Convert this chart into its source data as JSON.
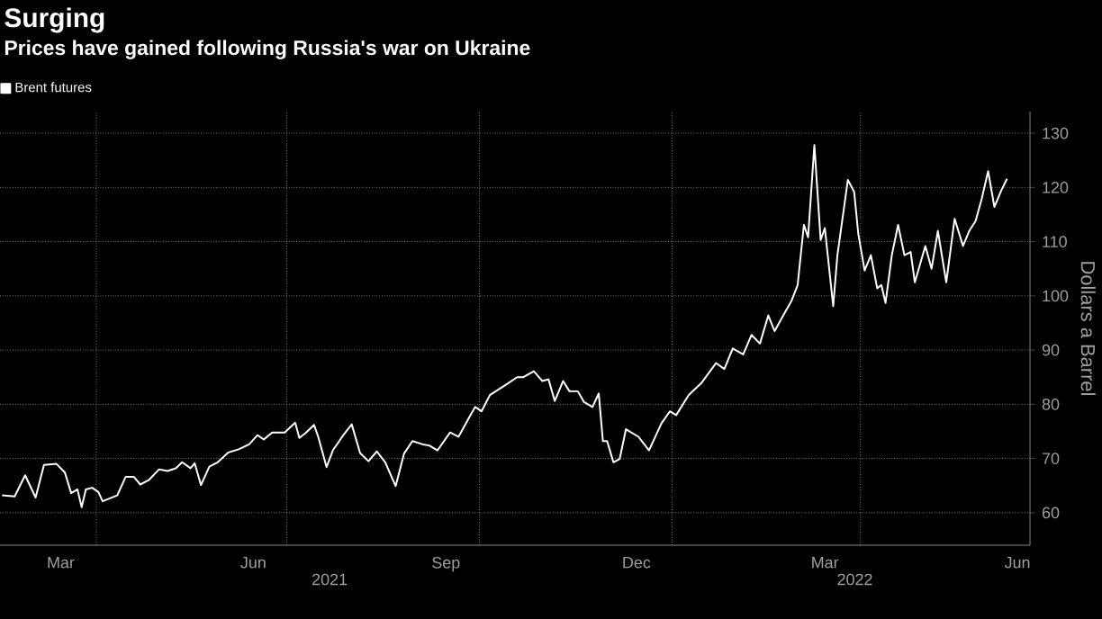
{
  "chart_data": {
    "type": "line",
    "title": "Surging",
    "subtitle": "Prices have gained following Russia's war on Ukraine",
    "ylabel": "Dollars a Barrel",
    "annotations": [
      "2021",
      "2022"
    ],
    "legend": "top left",
    "grid": true,
    "marker": "none",
    "line_style": "solid",
    "xlim": [
      "2021-02-14",
      "2022-06-21"
    ],
    "xticks": [
      {
        "value": "2021-03-15",
        "label": "Mar"
      },
      {
        "value": "2021-04-01",
        "label": null
      },
      {
        "value": "2021-06-15",
        "label": "Jun"
      },
      {
        "value": "2021-07-01",
        "label": null
      },
      {
        "value": "2021-09-15",
        "label": "Sep"
      },
      {
        "value": "2021-10-01",
        "label": null
      },
      {
        "value": "2021-12-15",
        "label": "Dec"
      },
      {
        "value": "2022-01-01",
        "label": null
      },
      {
        "value": "2022-03-15",
        "label": "Mar"
      },
      {
        "value": "2022-04-01",
        "label": null
      },
      {
        "value": "2022-06-15",
        "label": "Jun"
      }
    ],
    "ylim": [
      54,
      134
    ],
    "yticks": [
      60,
      70,
      80,
      90,
      100,
      110,
      120,
      130
    ],
    "series": [
      {
        "name": "Brent futures",
        "color": "#ffffff",
        "x": [
          "2021-02-15",
          "2021-02-21",
          "2021-02-26",
          "2021-03-03",
          "2021-03-07",
          "2021-03-13",
          "2021-03-17",
          "2021-03-20",
          "2021-03-23",
          "2021-03-25",
          "2021-03-27",
          "2021-03-30",
          "2021-04-02",
          "2021-04-04",
          "2021-04-11",
          "2021-04-15",
          "2021-04-19",
          "2021-04-22",
          "2021-04-26",
          "2021-05-01",
          "2021-05-05",
          "2021-05-09",
          "2021-05-12",
          "2021-05-16",
          "2021-05-18",
          "2021-05-21",
          "2021-05-25",
          "2021-05-29",
          "2021-06-03",
          "2021-06-08",
          "2021-06-13",
          "2021-06-17",
          "2021-06-20",
          "2021-06-24",
          "2021-06-30",
          "2021-07-05",
          "2021-07-07",
          "2021-07-10",
          "2021-07-14",
          "2021-07-16",
          "2021-07-20",
          "2021-07-23",
          "2021-07-28",
          "2021-08-01",
          "2021-08-05",
          "2021-08-09",
          "2021-08-13",
          "2021-08-17",
          "2021-08-22",
          "2021-08-26",
          "2021-08-30",
          "2021-09-04",
          "2021-09-07",
          "2021-09-11",
          "2021-09-17",
          "2021-09-21",
          "2021-09-27",
          "2021-09-29",
          "2021-10-02",
          "2021-10-06",
          "2021-10-14",
          "2021-10-19",
          "2021-10-22",
          "2021-10-27",
          "2021-10-31",
          "2021-11-03",
          "2021-11-06",
          "2021-11-10",
          "2021-11-13",
          "2021-11-17",
          "2021-11-20",
          "2021-11-24",
          "2021-11-27",
          "2021-11-29",
          "2021-12-01",
          "2021-12-04",
          "2021-12-07",
          "2021-12-10",
          "2021-12-16",
          "2021-12-21",
          "2021-12-27",
          "2021-12-31",
          "2022-01-03",
          "2022-01-09",
          "2022-01-15",
          "2022-01-22",
          "2022-01-26",
          "2022-01-30",
          "2022-02-04",
          "2022-02-08",
          "2022-02-12",
          "2022-02-16",
          "2022-02-19",
          "2022-02-24",
          "2022-02-27",
          "2022-03-02",
          "2022-03-05",
          "2022-03-07",
          "2022-03-10",
          "2022-03-13",
          "2022-03-15",
          "2022-03-19",
          "2022-03-21",
          "2022-03-24",
          "2022-03-26",
          "2022-03-29",
          "2022-03-31",
          "2022-04-03",
          "2022-04-06",
          "2022-04-09",
          "2022-04-11",
          "2022-04-13",
          "2022-04-16",
          "2022-04-19",
          "2022-04-22",
          "2022-04-25",
          "2022-04-27",
          "2022-05-02",
          "2022-05-05",
          "2022-05-08",
          "2022-05-12",
          "2022-05-16",
          "2022-05-20",
          "2022-05-23",
          "2022-05-26",
          "2022-05-29",
          "2022-06-01",
          "2022-06-04",
          "2022-06-07",
          "2022-06-10"
        ],
        "values": [
          63.2,
          63.0,
          66.9,
          62.8,
          68.8,
          69.0,
          67.4,
          63.6,
          64.3,
          61.0,
          64.3,
          64.6,
          63.8,
          62.1,
          63.2,
          66.6,
          66.6,
          65.2,
          66.0,
          68.0,
          67.7,
          68.2,
          69.3,
          68.2,
          69.1,
          65.1,
          68.5,
          69.3,
          71.1,
          71.7,
          72.6,
          74.3,
          73.5,
          74.8,
          74.8,
          76.6,
          73.8,
          74.7,
          76.2,
          74.0,
          68.4,
          71.5,
          74.3,
          76.3,
          71.0,
          69.5,
          71.3,
          69.3,
          64.9,
          70.9,
          73.2,
          72.6,
          72.4,
          71.5,
          74.8,
          74.0,
          78.2,
          79.5,
          78.7,
          81.7,
          83.7,
          85.0,
          85.0,
          86.1,
          84.3,
          84.6,
          80.6,
          84.3,
          82.4,
          82.4,
          80.4,
          79.5,
          82.0,
          73.2,
          73.2,
          69.3,
          69.9,
          75.4,
          74.0,
          71.5,
          76.5,
          78.7,
          78.0,
          81.7,
          83.9,
          87.6,
          86.5,
          90.3,
          89.2,
          92.8,
          91.2,
          96.4,
          93.5,
          97.0,
          99.0,
          102.0,
          113.1,
          110.8,
          127.8,
          110.3,
          112.5,
          98.1,
          107.5,
          115.8,
          121.4,
          119.2,
          111.4,
          104.7,
          107.5,
          101.4,
          102.0,
          98.7,
          107.5,
          113.1,
          107.5,
          108.1,
          102.5,
          109.2,
          105.0,
          112.0,
          102.5,
          114.2,
          109.2,
          112.0,
          113.8,
          118.0,
          123.0,
          116.4,
          119.2,
          121.6
        ]
      }
    ]
  }
}
